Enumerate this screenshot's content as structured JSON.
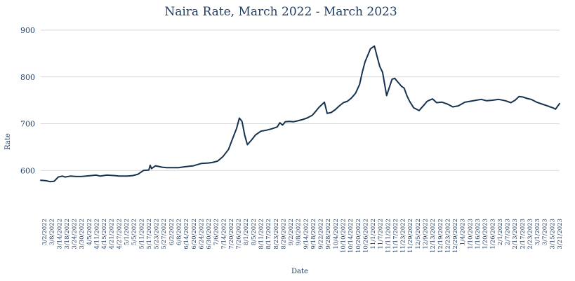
{
  "chart_data": {
    "type": "line",
    "title": "Naira Rate, March 2022 - March 2023",
    "xlabel": "Date",
    "ylabel": "Rate",
    "ylim": [
      500,
      900
    ],
    "yticks": [
      600,
      700,
      800,
      900
    ],
    "grid": true,
    "legend": "none",
    "line_color": "#17324f",
    "text_color": "#1f3a5f",
    "x_tick_labels": [
      "3/2/2022",
      "3/8/2022",
      "3/14/2022",
      "3/18/2022",
      "3/24/2022",
      "3/30/2022",
      "4/5/2022",
      "4/11/2022",
      "4/15/2022",
      "4/21/2022",
      "4/27/2022",
      "5/1/2022",
      "5/5/2022",
      "5/11/2022",
      "5/17/2022",
      "5/23/2022",
      "5/27/2022",
      "6/2/2022",
      "6/8/2022",
      "6/14/2022",
      "6/20/2022",
      "6/24/2022",
      "6/30/2022",
      "7/6/2022",
      "7/14/2022",
      "7/20/2022",
      "7/26/2022",
      "8/1/2022",
      "8/5/2022",
      "8/11/2022",
      "8/17/2022",
      "8/23/2022",
      "8/29/2022",
      "9/2/2022",
      "9/8/2022",
      "9/14/2022",
      "9/18/2022",
      "9/22/2022",
      "9/28/2022",
      "10/4/2022",
      "10/10/2022",
      "10/14/2022",
      "10/20/2022",
      "10/26/2022",
      "11/1/2022",
      "11/7/2022",
      "11/11/2022",
      "11/17/2022",
      "11/23/2022",
      "11/29/2022",
      "12/5/2022",
      "12/9/2022",
      "12/13/2022",
      "12/19/2022",
      "12/23/2022",
      "12/29/2022",
      "1/4/2023",
      "1/10/2023",
      "1/16/2023",
      "1/20/2023",
      "1/26/2023",
      "2/1/2023",
      "2/7/2023",
      "2/13/2023",
      "2/17/2023",
      "2/23/2023",
      "3/1/2023",
      "3/7/2023",
      "3/15/2023",
      "3/21/2023"
    ],
    "series": [
      {
        "x": [
          "2022-03-02",
          "2022-03-06",
          "2022-03-09",
          "2022-03-12",
          "2022-03-15",
          "2022-03-18",
          "2022-03-20",
          "2022-03-24",
          "2022-03-28",
          "2022-04-01",
          "2022-04-08",
          "2022-04-12",
          "2022-04-15",
          "2022-04-20",
          "2022-04-26",
          "2022-04-29",
          "2022-05-05",
          "2022-05-09",
          "2022-05-13",
          "2022-05-17",
          "2022-05-21",
          "2022-05-22",
          "2022-05-23",
          "2022-05-26",
          "2022-05-31",
          "2022-06-03",
          "2022-06-07",
          "2022-06-12",
          "2022-06-17",
          "2022-06-23",
          "2022-06-29",
          "2022-07-04",
          "2022-07-07",
          "2022-07-11",
          "2022-07-15",
          "2022-07-19",
          "2022-07-22",
          "2022-07-25",
          "2022-07-27",
          "2022-07-29",
          "2022-07-31",
          "2022-08-02",
          "2022-08-05",
          "2022-08-08",
          "2022-08-12",
          "2022-08-16",
          "2022-08-20",
          "2022-08-24",
          "2022-08-26",
          "2022-08-28",
          "2022-08-30",
          "2022-09-02",
          "2022-09-05",
          "2022-09-08",
          "2022-09-12",
          "2022-09-15",
          "2022-09-19",
          "2022-09-22",
          "2022-09-24",
          "2022-09-28",
          "2022-09-30",
          "2022-10-03",
          "2022-10-06",
          "2022-10-09",
          "2022-10-12",
          "2022-10-15",
          "2022-10-18",
          "2022-10-21",
          "2022-10-24",
          "2022-10-26",
          "2022-10-28",
          "2022-11-01",
          "2022-11-04",
          "2022-11-06",
          "2022-11-08",
          "2022-11-10",
          "2022-11-13",
          "2022-11-17",
          "2022-11-19",
          "2022-11-21",
          "2022-11-24",
          "2022-11-26",
          "2022-11-28",
          "2022-11-30",
          "2022-12-03",
          "2022-12-07",
          "2022-12-11",
          "2022-12-13",
          "2022-12-17",
          "2022-12-20",
          "2022-12-24",
          "2022-12-28",
          "2023-01-01",
          "2023-01-05",
          "2023-01-10",
          "2023-01-14",
          "2023-01-18",
          "2023-01-22",
          "2023-01-26",
          "2023-01-30",
          "2023-02-04",
          "2023-02-09",
          "2023-02-13",
          "2023-02-16",
          "2023-02-19",
          "2023-02-22",
          "2023-02-25",
          "2023-02-28",
          "2023-03-04",
          "2023-03-08",
          "2023-03-12",
          "2023-03-14",
          "2023-03-16",
          "2023-03-18",
          "2023-03-21"
        ],
        "y": [
          579,
          578,
          576,
          577,
          586,
          588,
          586,
          588,
          587,
          587,
          589,
          590,
          588,
          590,
          589,
          588,
          588,
          589,
          592,
          600,
          601,
          611,
          604,
          610,
          607,
          606,
          606,
          606,
          608,
          610,
          615,
          616,
          617,
          620,
          630,
          645,
          668,
          690,
          712,
          705,
          675,
          655,
          665,
          676,
          684,
          686,
          689,
          693,
          702,
          697,
          704,
          705,
          704,
          706,
          709,
          712,
          718,
          728,
          735,
          746,
          722,
          724,
          730,
          738,
          745,
          748,
          755,
          765,
          784,
          810,
          832,
          860,
          866,
          843,
          822,
          810,
          760,
          795,
          797,
          790,
          780,
          776,
          760,
          748,
          734,
          728,
          741,
          748,
          753,
          745,
          746,
          742,
          736,
          738,
          746,
          748,
          750,
          752,
          749,
          750,
          752,
          749,
          745,
          750,
          758,
          757,
          754,
          752,
          746,
          742,
          738,
          736,
          734,
          731,
          743
        ]
      }
    ]
  }
}
